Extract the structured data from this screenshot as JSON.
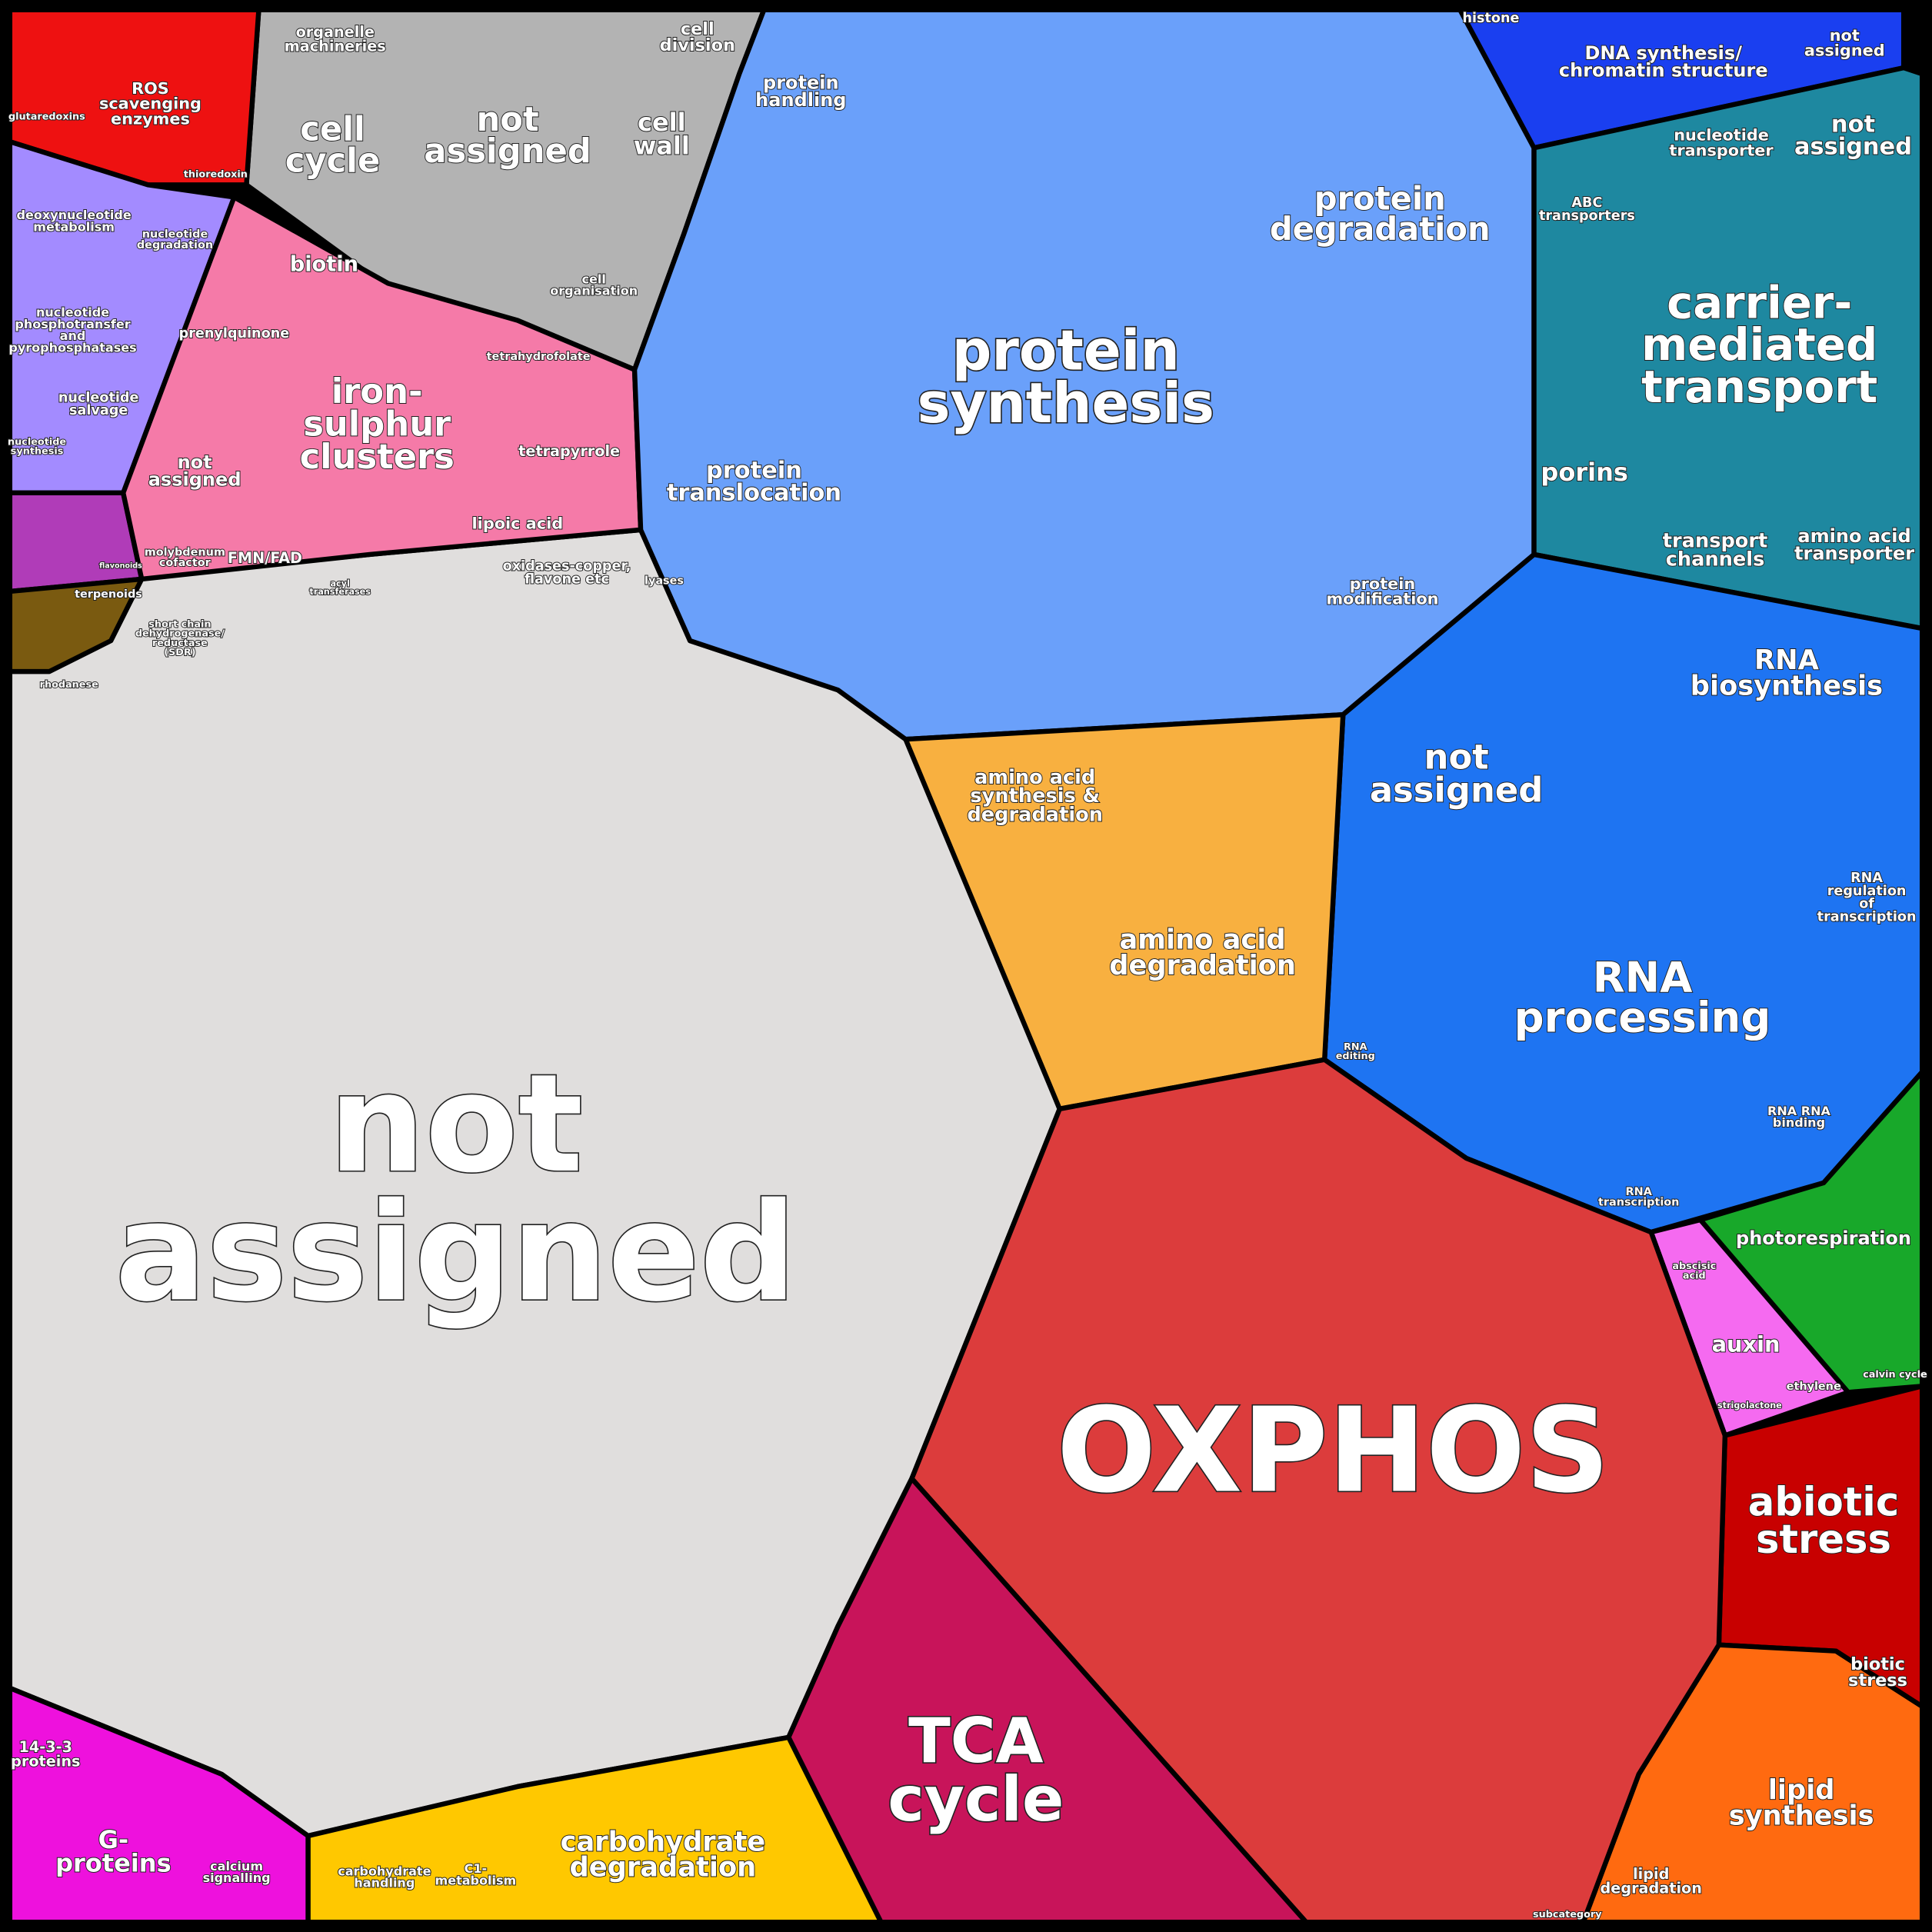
{
  "labels": [
    {
      "lines": [
        "not",
        "assigned"
      ]
    },
    {
      "lines": [
        "OXPHOS"
      ]
    },
    {
      "lines": [
        "protein",
        "synthesis"
      ]
    },
    {
      "lines": [
        "protein",
        "degradation"
      ]
    },
    {
      "lines": [
        "protein",
        "translocation"
      ]
    },
    {
      "lines": [
        "protein",
        "handling"
      ]
    },
    {
      "lines": [
        "protein",
        "modification"
      ]
    },
    {
      "lines": [
        "carrier-",
        "mediated",
        "transport"
      ]
    },
    {
      "lines": [
        "porins"
      ]
    },
    {
      "lines": [
        "transport",
        "channels"
      ]
    },
    {
      "lines": [
        "amino acid",
        "transporter"
      ]
    },
    {
      "lines": [
        "ABC",
        "transporters"
      ]
    },
    {
      "lines": [
        "nucleotide",
        "transporter"
      ]
    },
    {
      "lines": [
        "not",
        "assigned"
      ]
    },
    {
      "lines": [
        "DNA synthesis/",
        "chromatin structure"
      ]
    },
    {
      "lines": [
        "histone"
      ]
    },
    {
      "lines": [
        "not",
        "assigned"
      ]
    },
    {
      "lines": [
        "RNA",
        "biosynthesis"
      ]
    },
    {
      "lines": [
        "not",
        "assigned"
      ]
    },
    {
      "lines": [
        "RNA",
        "processing"
      ]
    },
    {
      "lines": [
        "RNA",
        "regulation",
        "of",
        "transcription"
      ]
    },
    {
      "lines": [
        "RNA RNA",
        "binding"
      ]
    },
    {
      "lines": [
        "RNA",
        "transcription"
      ]
    },
    {
      "lines": [
        "RNA",
        "editing"
      ]
    },
    {
      "lines": [
        "amino acid",
        "synthesis &",
        "degradation"
      ]
    },
    {
      "lines": [
        "amino acid",
        "degradation"
      ]
    },
    {
      "lines": [
        "photorespiration"
      ]
    },
    {
      "lines": [
        "calvin cycle"
      ]
    },
    {
      "lines": [
        "auxin"
      ]
    },
    {
      "lines": [
        "abscisic",
        "acid"
      ]
    },
    {
      "lines": [
        "ethylene"
      ]
    },
    {
      "lines": [
        "strigolactone"
      ]
    },
    {
      "lines": [
        "abiotic",
        "stress"
      ]
    },
    {
      "lines": [
        "biotic",
        "stress"
      ]
    },
    {
      "lines": [
        "lipid",
        "synthesis"
      ]
    },
    {
      "lines": [
        "lipid",
        "degradation"
      ]
    },
    {
      "lines": [
        "subcategory"
      ]
    },
    {
      "lines": [
        "TCA",
        "cycle"
      ]
    },
    {
      "lines": [
        "carbohydrate",
        "degradation"
      ]
    },
    {
      "lines": [
        "carbohydrate",
        "handling"
      ]
    },
    {
      "lines": [
        "C1-",
        "metabolism"
      ]
    },
    {
      "lines": [
        "G-",
        "proteins"
      ]
    },
    {
      "lines": [
        "14-3-3",
        "proteins"
      ]
    },
    {
      "lines": [
        "calcium",
        "signalling"
      ]
    },
    {
      "lines": [
        "iron-",
        "sulphur",
        "clusters"
      ]
    },
    {
      "lines": [
        "biotin"
      ]
    },
    {
      "lines": [
        "prenylquinone"
      ]
    },
    {
      "lines": [
        "not",
        "assigned"
      ]
    },
    {
      "lines": [
        "tetrahydrofolate"
      ]
    },
    {
      "lines": [
        "tetrapyrrole"
      ]
    },
    {
      "lines": [
        "lipoic acid"
      ]
    },
    {
      "lines": [
        "FMN/FAD"
      ]
    },
    {
      "lines": [
        "molybdenum",
        "cofactor"
      ]
    },
    {
      "lines": [
        "cell",
        "cycle"
      ]
    },
    {
      "lines": [
        "not",
        "assigned"
      ]
    },
    {
      "lines": [
        "cell",
        "wall"
      ]
    },
    {
      "lines": [
        "cell",
        "division"
      ]
    },
    {
      "lines": [
        "organelle",
        "machineries"
      ]
    },
    {
      "lines": [
        "cell",
        "organisation"
      ]
    },
    {
      "lines": [
        "ROS",
        "scavenging",
        "enzymes"
      ]
    },
    {
      "lines": [
        "glutaredoxins"
      ]
    },
    {
      "lines": [
        "thioredoxin"
      ]
    },
    {
      "lines": [
        "deoxynucleotide",
        "metabolism"
      ]
    },
    {
      "lines": [
        "nucleotide",
        "degradation"
      ]
    },
    {
      "lines": [
        "nucleotide",
        "phosphotransfer",
        "and",
        "pyrophosphatases"
      ]
    },
    {
      "lines": [
        "nucleotide",
        "salvage"
      ]
    },
    {
      "lines": [
        "nucleotide",
        "synthesis"
      ]
    },
    {
      "lines": [
        "terpenoids"
      ]
    },
    {
      "lines": [
        "flavonoids"
      ]
    },
    {
      "lines": [
        "oxidases-copper,",
        "flavone etc"
      ]
    },
    {
      "lines": [
        "lyases"
      ]
    },
    {
      "lines": [
        "acyl",
        "transferases"
      ]
    },
    {
      "lines": [
        "short chain",
        "dehydrogenase/",
        "reductase",
        "(SDR)"
      ]
    },
    {
      "lines": [
        "rhodanese"
      ]
    }
  ]
}
